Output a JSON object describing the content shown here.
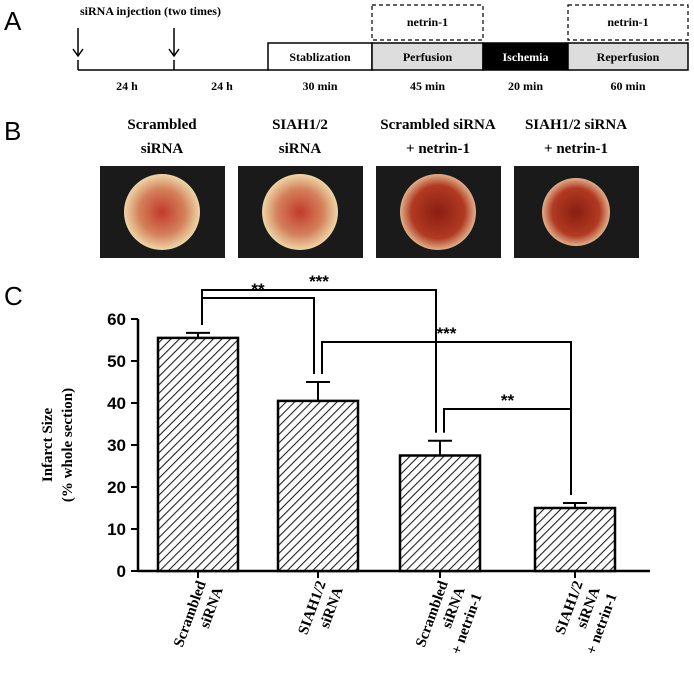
{
  "panel_labels": [
    "A",
    "B",
    "C"
  ],
  "timeline": {
    "injection_label": "siRNA injection (two times)",
    "intervals": [
      "24 h",
      "24 h"
    ],
    "phases": [
      {
        "name": "Stablization",
        "duration": "30 min"
      },
      {
        "name": "Perfusion",
        "duration": "45 min",
        "treatment": "netrin-1"
      },
      {
        "name": "Ischemia",
        "duration": "20 min"
      },
      {
        "name": "Reperfusion",
        "duration": "60 min",
        "treatment": "netrin-1"
      }
    ]
  },
  "images": [
    {
      "label": [
        "Scrambled",
        "siRNA"
      ]
    },
    {
      "label": [
        "SIAH1/2",
        "siRNA"
      ]
    },
    {
      "label": [
        "Scrambled siRNA",
        "+ netrin-1"
      ]
    },
    {
      "label": [
        "SIAH1/2 siRNA",
        "+ netrin-1"
      ]
    }
  ],
  "chart_data": {
    "type": "bar",
    "ylabel": [
      "Infarct Size",
      "(% whole section)"
    ],
    "categories": [
      [
        "Scrambled",
        "siRNA"
      ],
      [
        "SIAH1/2",
        "siRNA"
      ],
      [
        "Scrambled",
        "siRNA",
        "+ netrin-1"
      ],
      [
        "SIAH1/2",
        "siRNA",
        "+ netrin-1"
      ]
    ],
    "values": [
      55.5,
      40.5,
      27.5,
      15.0
    ],
    "errors": [
      1.2,
      4.5,
      3.5,
      1.2
    ],
    "ylim": [
      0,
      60
    ],
    "yticks": [
      0,
      10,
      20,
      30,
      40,
      50,
      60
    ],
    "significance": [
      {
        "from": 0,
        "to": 1,
        "label": "**"
      },
      {
        "from": 0,
        "to": 2,
        "label": "***"
      },
      {
        "from": 1,
        "to": 3,
        "label": "***"
      },
      {
        "from": 2,
        "to": 3,
        "label": "**"
      }
    ]
  }
}
